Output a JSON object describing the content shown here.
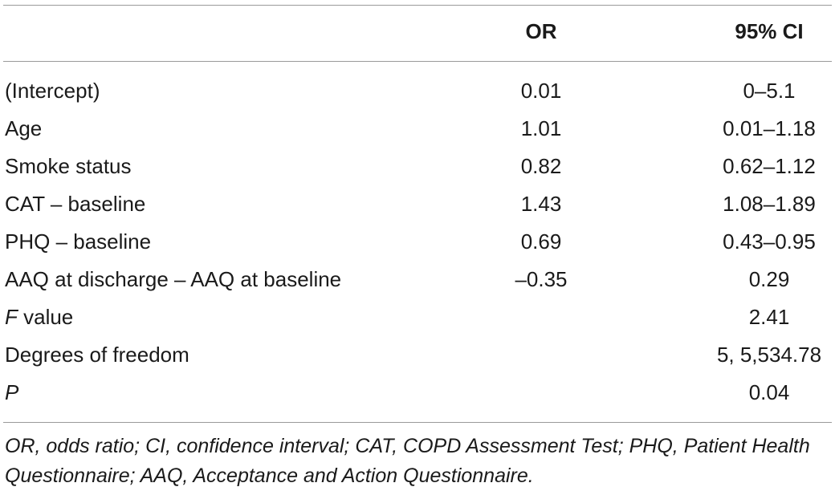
{
  "table": {
    "headers": {
      "label": "",
      "or": "OR",
      "ci": "95% CI"
    },
    "rows": [
      {
        "label": "(Intercept)",
        "or": "0.01",
        "ci": "0–5.1"
      },
      {
        "label": "Age",
        "or": "1.01",
        "ci": "0.01–1.18"
      },
      {
        "label": "Smoke status",
        "or": "0.82",
        "ci": "0.62–1.12"
      },
      {
        "label": "CAT – baseline",
        "or": "1.43",
        "ci": "1.08–1.89"
      },
      {
        "label": "PHQ – baseline",
        "or": "0.69",
        "ci": "0.43–0.95"
      },
      {
        "label": "AAQ at discharge – AAQ at baseline",
        "or": "–0.35",
        "ci": "0.29"
      },
      {
        "label_italic": "F",
        "label": " value",
        "or": "",
        "ci": "2.41"
      },
      {
        "label": "Degrees of freedom",
        "or": "",
        "ci": "5, 5,534.78"
      },
      {
        "label_italic": "P",
        "label": "",
        "or": "",
        "ci": "0.04"
      }
    ],
    "footnote": "OR, odds ratio; CI, confidence interval; CAT, COPD Assessment Test; PHQ, Patient Health Questionnaire; AAQ, Acceptance and Action Questionnaire."
  }
}
